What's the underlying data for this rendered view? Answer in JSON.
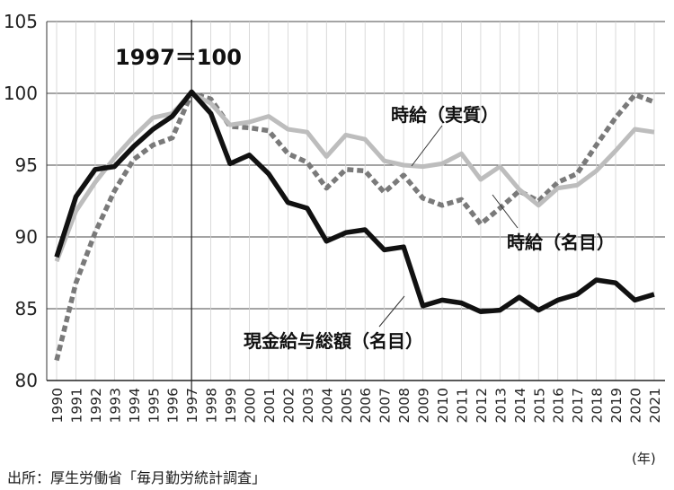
{
  "chart_data": {
    "type": "line",
    "x": [
      "1990",
      "1991",
      "1992",
      "1993",
      "1994",
      "1995",
      "1996",
      "1997",
      "1998",
      "1999",
      "2000",
      "2001",
      "2002",
      "2003",
      "2004",
      "2005",
      "2006",
      "2007",
      "2008",
      "2009",
      "2010",
      "2011",
      "2012",
      "2013",
      "2014",
      "2015",
      "2016",
      "2017",
      "2018",
      "2019",
      "2020",
      "2021"
    ],
    "ylim": [
      80,
      105
    ],
    "yticks": [
      80,
      85,
      90,
      95,
      100,
      105
    ],
    "grid": true,
    "xunit": "(年)",
    "reference_line": {
      "x": "1997",
      "label": "1997＝100"
    },
    "series": [
      {
        "name": "現金給与総額（名目）",
        "color": "#111111",
        "style": "solid",
        "values": [
          88.6,
          92.8,
          94.7,
          94.9,
          96.3,
          97.5,
          98.4,
          100.1,
          98.6,
          95.1,
          95.7,
          94.4,
          92.4,
          92.0,
          89.7,
          90.3,
          90.5,
          89.1,
          89.3,
          85.2,
          85.6,
          85.4,
          84.8,
          84.9,
          85.8,
          84.9,
          85.6,
          86.0,
          87.0,
          86.8,
          85.6,
          86.0
        ]
      },
      {
        "name": "時給（実質）",
        "color": "#bdbdbd",
        "style": "solid",
        "values": [
          88.3,
          91.8,
          93.8,
          95.5,
          97.0,
          98.3,
          98.6,
          100.0,
          99.3,
          97.8,
          98.0,
          98.4,
          97.5,
          97.3,
          95.6,
          97.1,
          96.8,
          95.3,
          95.0,
          94.9,
          95.1,
          95.8,
          94.0,
          94.9,
          93.3,
          92.2,
          93.4,
          93.6,
          94.6,
          96.0,
          97.5,
          97.3
        ]
      },
      {
        "name": "時給（名目）",
        "color": "#7a7a7a",
        "style": "dashed",
        "values": [
          81.4,
          86.8,
          90.3,
          93.2,
          95.4,
          96.4,
          96.9,
          100.0,
          99.6,
          97.7,
          97.6,
          97.4,
          95.8,
          95.2,
          93.4,
          94.7,
          94.6,
          93.1,
          94.3,
          92.7,
          92.2,
          92.6,
          90.9,
          92.0,
          93.2,
          92.5,
          93.8,
          94.4,
          96.4,
          98.3,
          99.9,
          99.4
        ]
      }
    ],
    "labels": [
      {
        "series": 1,
        "text": "時給（実質）"
      },
      {
        "series": 2,
        "text": "時給（名目）"
      },
      {
        "series": 0,
        "text": "現金給与総額（名目）"
      }
    ]
  },
  "source": "出所：厚生労働省「毎月勤労統計調査」"
}
